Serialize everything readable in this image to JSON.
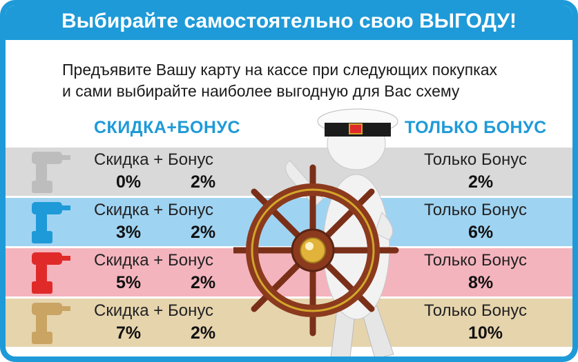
{
  "header": {
    "title": "Выбирайте самостоятельно свою ВЫГОДУ!"
  },
  "intro": {
    "line1": "Предъявите Вашу карту на кассе при следующих покупках",
    "line2": "и сами выбирайте наиболее выгодную для Вас схему"
  },
  "columns": {
    "left_title": "СКИДКА+БОНУС",
    "right_title": "ТОЛЬКО БОНУС"
  },
  "rows": [
    {
      "left_label": "Скидка + Бонус",
      "discount": "0%",
      "bonus": "2%",
      "right_label": "Только Бонус",
      "only_bonus": "2%",
      "color": "#d9d9d9",
      "drill_color": "#bdbdbd"
    },
    {
      "left_label": "Скидка + Бонус",
      "discount": "3%",
      "bonus": "2%",
      "right_label": "Только Бонус",
      "only_bonus": "6%",
      "color": "#9fd3f2",
      "drill_color": "#1e9ad8"
    },
    {
      "left_label": "Скидка + Бонус",
      "discount": "5%",
      "bonus": "2%",
      "right_label": "Только Бонус",
      "only_bonus": "8%",
      "color": "#f4b4bd",
      "drill_color": "#e02a2a"
    },
    {
      "left_label": "Скидка + Бонус",
      "discount": "7%",
      "bonus": "2%",
      "right_label": "Только Бонус",
      "only_bonus": "10%",
      "color": "#e6d4ad",
      "drill_color": "#c9a463"
    }
  ],
  "colors": {
    "accent": "#1e9ad8"
  }
}
